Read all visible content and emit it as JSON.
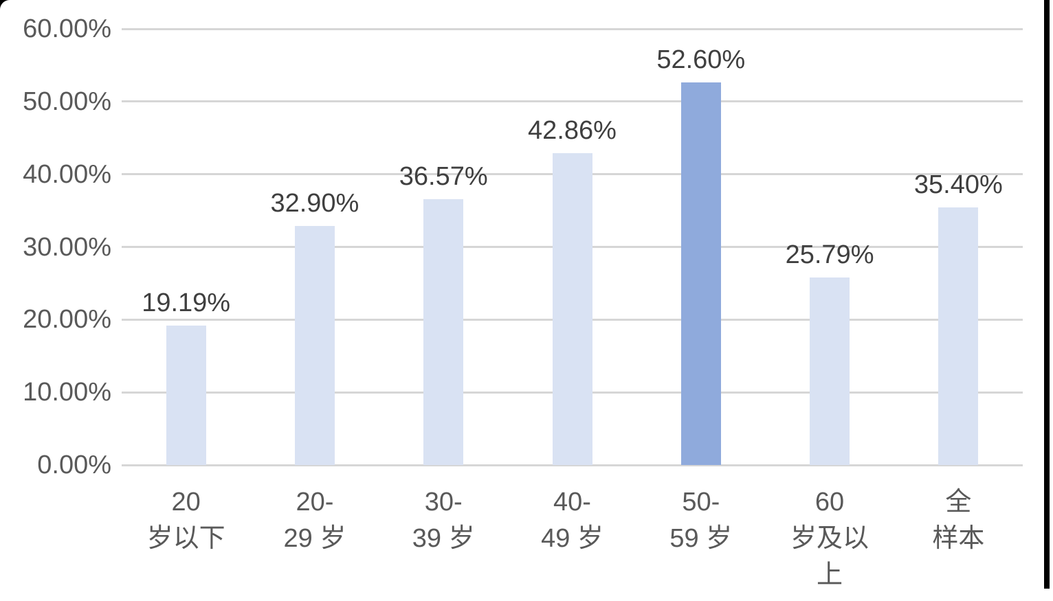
{
  "chart_data": {
    "type": "bar",
    "title": "",
    "xlabel": "",
    "ylabel": "",
    "categories": [
      "20 岁以下",
      "20-29 岁",
      "30-39 岁",
      "40-49 岁",
      "50-59 岁",
      "60 岁及以上",
      "全样本"
    ],
    "x_labels_wrapped": [
      "20\n岁以下",
      "20-\n29 岁",
      "30-\n39 岁",
      "40-\n49 岁",
      "50-\n59 岁",
      "60\n岁及以\n上",
      "全\n样本"
    ],
    "values": [
      19.19,
      32.9,
      36.57,
      42.86,
      52.6,
      25.79,
      35.4
    ],
    "data_labels": [
      "19.19%",
      "32.90%",
      "36.57%",
      "42.86%",
      "52.60%",
      "25.79%",
      "35.40%"
    ],
    "highlighted_index": 4,
    "y_ticks": [
      "0.00%",
      "10.00%",
      "20.00%",
      "30.00%",
      "40.00%",
      "50.00%",
      "60.00%"
    ],
    "ylim": [
      0,
      60
    ],
    "y_tick_step": 10,
    "grid": true,
    "legend": "none",
    "colors": {
      "bar": "#D9E2F3",
      "bar_highlight": "#8FAADC",
      "gridline": "#D6D6D6",
      "data_label_text": "#3F3F3F",
      "axis_label_text": "#595959",
      "background": "#FFFFFF"
    }
  }
}
